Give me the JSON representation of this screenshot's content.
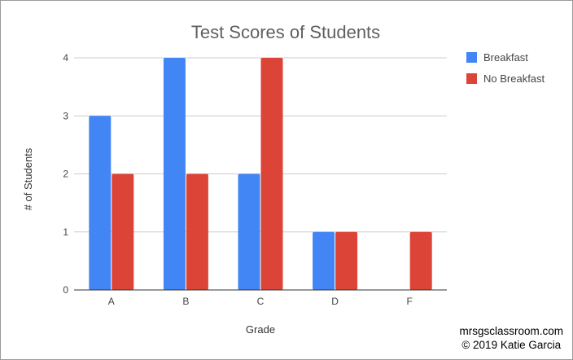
{
  "chart_data": {
    "type": "bar",
    "title": "Test Scores of Students",
    "xlabel": "Grade",
    "ylabel": "# of Students",
    "categories": [
      "A",
      "B",
      "C",
      "D",
      "F"
    ],
    "series": [
      {
        "name": "Breakfast",
        "values": [
          3,
          4,
          2,
          1,
          0
        ],
        "color": "#4285f4"
      },
      {
        "name": "No Breakfast",
        "values": [
          2,
          2,
          4,
          1,
          1
        ],
        "color": "#db4437"
      }
    ],
    "ylim": [
      0,
      4
    ],
    "yticks": [
      0,
      1,
      2,
      3,
      4
    ],
    "grid": true,
    "legend": "right"
  },
  "credit": {
    "line1": "mrsgsclassroom.com",
    "line2": "© 2019 Katie Garcia"
  }
}
